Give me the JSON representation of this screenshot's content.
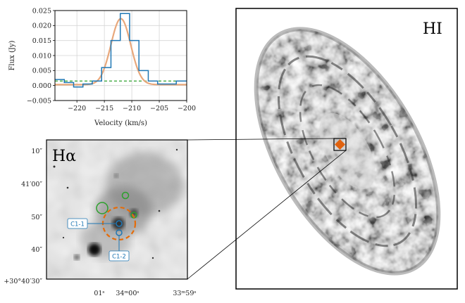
{
  "chart_data": {
    "type": "line",
    "xlabel": "Velocity (km/s)",
    "ylabel": "Flux (Jy)",
    "xlim": [
      -224,
      -200
    ],
    "ylim": [
      -0.005,
      0.025
    ],
    "x_ticks": [
      "−220",
      "−215",
      "−210",
      "−205",
      "−200"
    ],
    "y_ticks": [
      "−0.005",
      "0.000",
      "0.005",
      "0.010",
      "0.015",
      "0.020",
      "0.025"
    ],
    "grid": true,
    "colors": {
      "spectrum": "#1f77b4",
      "fit": "#e8a87c",
      "baseline": "#2ca02c"
    },
    "series": [
      {
        "kind": "step",
        "x": [
          -224,
          -222.3,
          -220.6,
          -218.9,
          -217.2,
          -215.5,
          -213.8,
          -212.1,
          -210.4,
          -208.7,
          -207.0,
          -205.3,
          -203.6,
          -201.9,
          -200
        ],
        "values": [
          0.002,
          0.001,
          -0.0005,
          0.0005,
          0.0015,
          0.006,
          0.015,
          0.024,
          0.015,
          0.005,
          0.0015,
          0.0005,
          0.0005,
          0.0015,
          0.0015
        ]
      },
      {
        "kind": "gaussian-fit",
        "amplitude": 0.022,
        "center": -212.0,
        "sigma": 1.8,
        "offset": 0.0003
      },
      {
        "kind": "baseline",
        "values": [
          0.0015
        ]
      }
    ]
  },
  "halpha": {
    "label": "Hα",
    "dec_ticks": [
      "10″",
      "41′00″",
      "50″",
      "40″",
      "+30°40′30″"
    ],
    "ra_ticks": [
      "01ˢ",
      "34ᵐ00ˢ",
      "33ᵐ59ˢ"
    ],
    "labels": {
      "c1": "C1-1",
      "c2": "C1-2"
    },
    "colors": {
      "aperture": "#e46c0a",
      "markers": "#1f77b4",
      "regions": "#2ca02c"
    }
  },
  "hi": {
    "label": "HI",
    "marker_color": "#e0620f"
  }
}
